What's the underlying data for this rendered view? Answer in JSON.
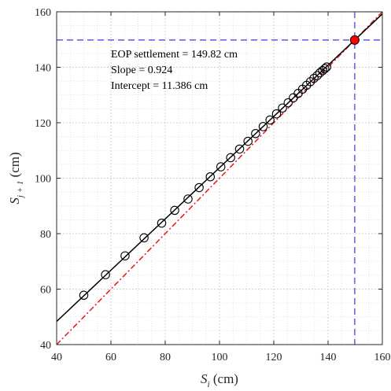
{
  "chart_data": {
    "type": "scatter",
    "xlim": [
      40,
      160
    ],
    "ylim": [
      40,
      160
    ],
    "xticks": [
      40,
      60,
      80,
      100,
      120,
      140,
      160
    ],
    "yticks": [
      40,
      60,
      80,
      100,
      120,
      140,
      160
    ],
    "xlabel": {
      "main": "S",
      "sub": "i",
      "unit": " (cm)"
    },
    "ylabel": {
      "main": "S",
      "sub": "j + 1",
      "unit": " (cm)"
    },
    "grid": "dotted major and minor",
    "annotations": [
      "EOP settlement = 149.82 cm",
      "Slope = 0.924",
      "Intercept = 11.386 cm"
    ],
    "series": [
      {
        "marker": "open-circle",
        "color": "#000000",
        "x": [
          50,
          58,
          65.2,
          72.2,
          78.7,
          83.5,
          88.4,
          92.5,
          96.6,
          100.5,
          104.1,
          107.4,
          110.5,
          113.3,
          116.1,
          118.6,
          121,
          123.2,
          125.3,
          127.2,
          129,
          130.6,
          132.1,
          133.5,
          134.8,
          136,
          137,
          138,
          138.8,
          139.5
        ],
        "y": [
          57.8,
          65.2,
          72,
          78.5,
          83.8,
          88.4,
          92.5,
          96.6,
          100.5,
          104.1,
          107.4,
          110.5,
          113.3,
          116.1,
          118.6,
          121,
          123.2,
          125.3,
          127.2,
          129,
          130.6,
          132.1,
          133.5,
          134.8,
          136,
          137,
          138,
          138.8,
          139.5,
          140.1
        ]
      }
    ],
    "fit_line": {
      "slope": 0.924,
      "intercept": 11.386,
      "color": "#000000",
      "style": "solid"
    },
    "equality_line": {
      "slope": 1,
      "intercept": 0,
      "color": "#e8141e",
      "style": "dash-dot"
    },
    "eop_point": {
      "x": 149.82,
      "y": 149.82,
      "color": "#ff0000"
    },
    "guide_lines": {
      "value": 149.82,
      "color": "#3c3cdc",
      "style": "dashed"
    }
  }
}
